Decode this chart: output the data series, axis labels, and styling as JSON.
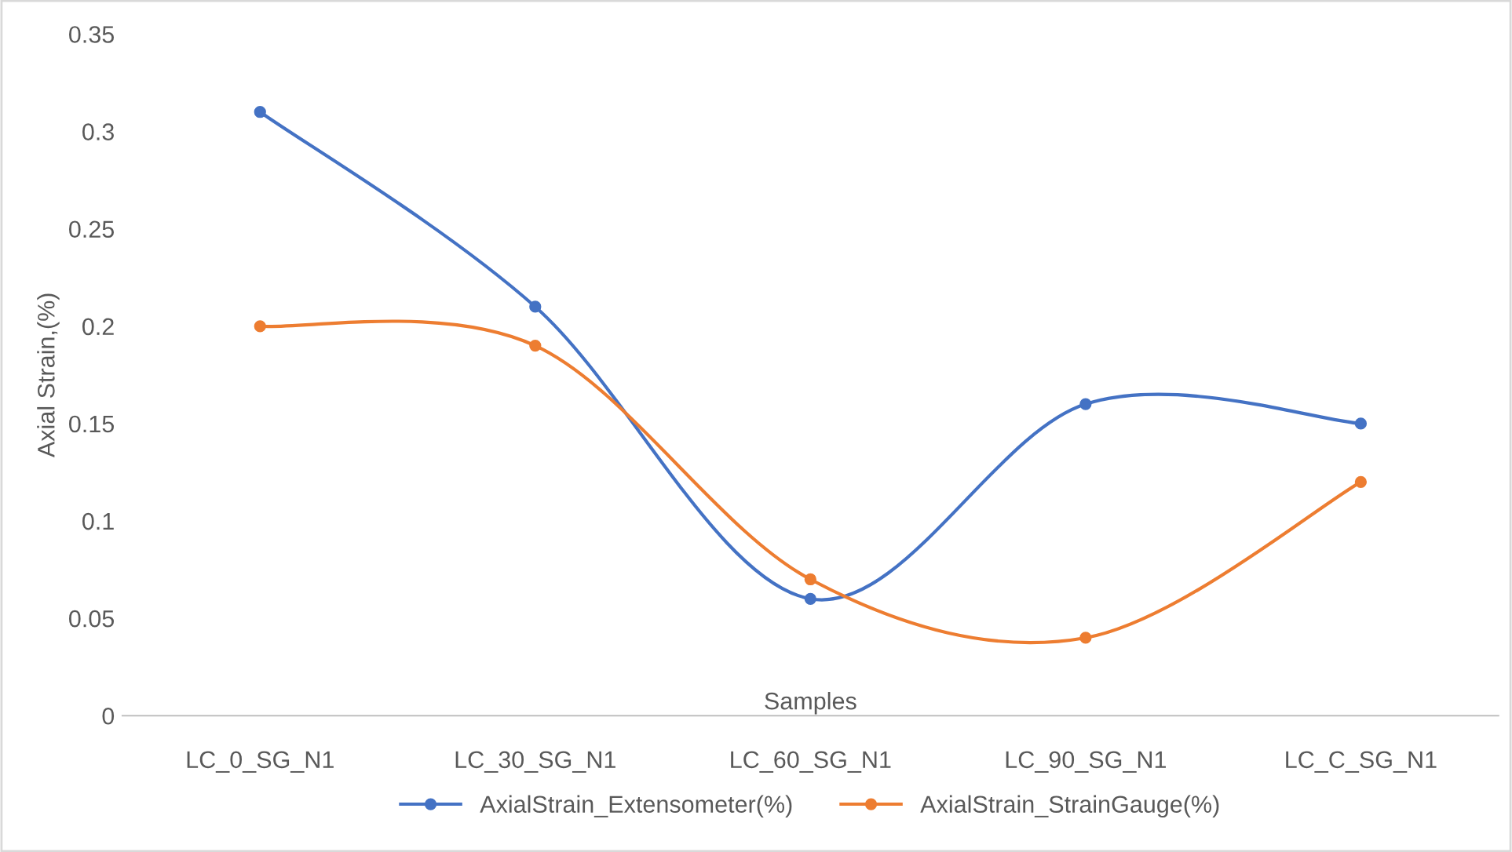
{
  "chart_data": {
    "type": "line",
    "xlabel": "Samples",
    "ylabel": "Axial Strain,(%)",
    "categories": [
      "LC_0_SG_N1",
      "LC_30_SG_N1",
      "LC_60_SG_N1",
      "LC_90_SG_N1",
      "LC_C_SG_N1"
    ],
    "series": [
      {
        "name": "AxialStrain_Extensometer(%)",
        "color": "#4472c4",
        "values": [
          0.31,
          0.21,
          0.06,
          0.16,
          0.15
        ]
      },
      {
        "name": "AxialStrain_StrainGauge(%)",
        "color": "#ed7d31",
        "values": [
          0.2,
          0.19,
          0.07,
          0.04,
          0.12
        ]
      }
    ],
    "ylim": [
      0,
      0.35
    ],
    "yticks": [
      0,
      0.05,
      0.1,
      0.15,
      0.2,
      0.25,
      0.3,
      0.35
    ],
    "grid": false,
    "legend": "bottom",
    "marker": "circle",
    "line_style": "solid"
  }
}
